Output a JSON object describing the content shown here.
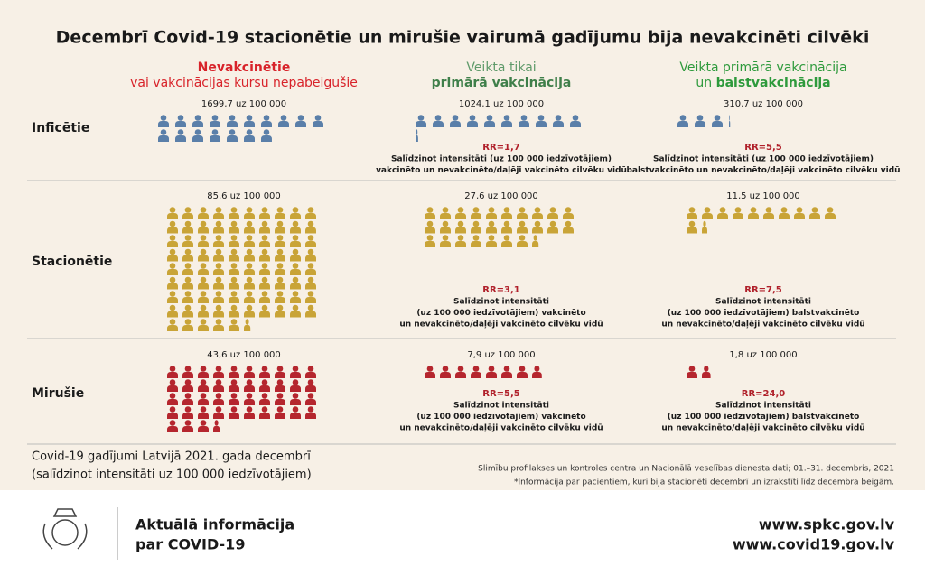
{
  "title": "Decembrī Covid-19 stacionētie un mirušie vairumā gadījumu bija nevakcinēti cilvēki",
  "columns": [
    {
      "line1": "Nevakcinētie",
      "line2": [
        "vai vakcinācijas kursu nepabeigušie"
      ]
    },
    {
      "line1": "Veikta tikai",
      "line2": [
        "primārā vakcinācija"
      ]
    },
    {
      "line1": "Veikta primārā vakcinācija",
      "line2": [
        "un ",
        "balstvakcinācija"
      ]
    }
  ],
  "rows": [
    {
      "label": "Inficētie",
      "cells": [
        {
          "value": 1699.7,
          "value_label": "1699,7 uz 100 000"
        },
        {
          "value": 1024.1,
          "value_label": "1024,1 uz 100 000",
          "rr": "RR=1,7",
          "note": [
            "Salīdzinot intensitāti (uz 100 000 iedzīvotājiem)",
            "vakcinēto un nevakcinēto/daļēji vakcinēto cilvēku vidū"
          ]
        },
        {
          "value": 310.7,
          "value_label": "310,7 uz 100 000",
          "rr": "RR=5,5",
          "note": [
            "Salīdzinot intensitāti (uz 100 000 iedzīvotājiem)",
            "balstvakcinēto un nevakcinēto/daļēji vakcinēto cilvēku vidū"
          ]
        }
      ]
    },
    {
      "label": "Stacionētie",
      "cells": [
        {
          "value": 85.6,
          "value_label": "85,6 uz 100 000"
        },
        {
          "value": 27.6,
          "value_label": "27,6 uz 100 000",
          "rr": "RR=3,1",
          "note": [
            "Salīdzinot intensitāti",
            "(uz 100 000 iedzīvotājiem) vakcinēto",
            "un nevakcinēto/daļēji vakcinēto cilvēku vidū"
          ]
        },
        {
          "value": 11.5,
          "value_label": "11,5 uz 100 000",
          "rr": "RR=7,5",
          "note": [
            "Salīdzinot intensitāti",
            "(uz 100 000 iedzīvotājiem) balstvakcinēto",
            "un nevakcinēto/daļēji vakcinēto cilvēku vidū"
          ]
        }
      ]
    },
    {
      "label": "Mirušie",
      "cells": [
        {
          "value": 43.6,
          "value_label": "43,6 uz 100 000"
        },
        {
          "value": 7.9,
          "value_label": "7,9 uz 100 000",
          "rr": "RR=5,5",
          "note": [
            "Salīdzinot intensitāti",
            "(uz 100 000 iedzīvotājiem) vakcinēto",
            "un nevakcinēto/daļēji vakcinēto cilvēku vidū"
          ]
        },
        {
          "value": 1.8,
          "value_label": "1,8 uz 100 000",
          "rr": "RR=24,0",
          "note": [
            "Salīdzinot intensitāti",
            "(uz 100 000 iedzīvotājiem) balstvakcinēto",
            "un nevakcinēto/daļēji vakcinēto cilvēku vidū"
          ]
        }
      ]
    }
  ],
  "footer": {
    "caption": [
      "Covid-19 gadījumi Latvijā 2021. gada decembrī",
      "(salīdzinot intensitāti uz 100 000 iedzīvotājiem)"
    ],
    "source": [
      "Slimību profilakses un kontroles centra un Nacionālā veselības dienesta dati; 01.–31. decembris, 2021",
      "*Informācija par pacientiem, kuri bija stacionēti decembrī un izrakstīti līdz decembra beigām."
    ]
  },
  "bottom_bar": {
    "info": [
      "Aktuālā informācija",
      "par COVID-19"
    ],
    "links": [
      "www.spkc.gov.lv",
      "www.covid19.gov.lv"
    ]
  }
}
